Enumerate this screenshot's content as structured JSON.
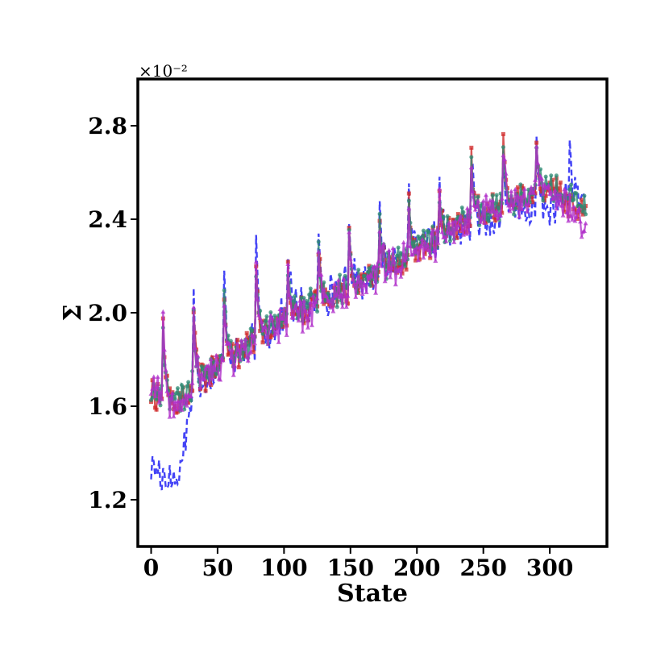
{
  "chart_data": {
    "type": "line",
    "xlabel": "State",
    "ylabel": "Σ",
    "y_offset_label": "×10⁻²",
    "xlim": [
      -10,
      343
    ],
    "ylim": [
      1.0,
      3.0
    ],
    "xticks": [
      0,
      50,
      100,
      150,
      200,
      250,
      300
    ],
    "xtick_labels": [
      "0",
      "50",
      "100",
      "150",
      "200",
      "250",
      "300"
    ],
    "yticks": [
      1.2,
      1.6,
      2.0,
      2.4,
      2.8
    ],
    "ytick_labels": [
      "1.2",
      "1.6",
      "2.0",
      "2.4",
      "2.8"
    ],
    "grid": false,
    "legend": "none",
    "x_count": 328,
    "series": [
      {
        "style": "dashed",
        "color": "#2f2ff5",
        "marker": "none",
        "trend": [
          [
            0,
            1.35
          ],
          [
            10,
            1.3
          ],
          [
            20,
            1.28
          ],
          [
            30,
            1.62
          ],
          [
            40,
            1.72
          ],
          [
            100,
            1.98
          ],
          [
            150,
            2.12
          ],
          [
            200,
            2.27
          ],
          [
            250,
            2.4
          ],
          [
            300,
            2.45
          ],
          [
            327,
            2.5
          ]
        ],
        "peaks": [
          [
            32,
            2.05
          ],
          [
            55,
            2.18
          ],
          [
            79,
            2.25
          ],
          [
            103,
            2.3
          ],
          [
            126,
            2.33
          ],
          [
            149,
            2.35
          ],
          [
            172,
            2.38
          ],
          [
            194,
            2.46
          ],
          [
            217,
            2.51
          ],
          [
            241,
            2.66
          ],
          [
            265,
            2.72
          ],
          [
            290,
            2.72
          ],
          [
            315,
            2.74
          ]
        ],
        "noise": 0.07
      },
      {
        "style": "solid",
        "color": "#d02b2b",
        "marker": "square",
        "trend": [
          [
            0,
            1.66
          ],
          [
            20,
            1.6
          ],
          [
            40,
            1.72
          ],
          [
            100,
            1.97
          ],
          [
            150,
            2.11
          ],
          [
            200,
            2.26
          ],
          [
            250,
            2.43
          ],
          [
            300,
            2.53
          ],
          [
            327,
            2.42
          ]
        ],
        "peaks": [
          [
            9,
            1.97
          ],
          [
            32,
            2.04
          ],
          [
            55,
            2.11
          ],
          [
            79,
            2.17
          ],
          [
            103,
            2.22
          ],
          [
            126,
            2.28
          ],
          [
            149,
            2.34
          ],
          [
            172,
            2.38
          ],
          [
            194,
            2.46
          ],
          [
            217,
            2.51
          ],
          [
            241,
            2.66
          ],
          [
            265,
            2.73
          ],
          [
            290,
            2.71
          ]
        ],
        "noise": 0.05
      },
      {
        "style": "solid",
        "color": "#2e8a73",
        "marker": "circle",
        "trend": [
          [
            0,
            1.66
          ],
          [
            20,
            1.62
          ],
          [
            40,
            1.73
          ],
          [
            100,
            1.98
          ],
          [
            150,
            2.12
          ],
          [
            200,
            2.27
          ],
          [
            250,
            2.44
          ],
          [
            300,
            2.54
          ],
          [
            327,
            2.45
          ]
        ],
        "peaks": [
          [
            9,
            1.95
          ],
          [
            32,
            2.03
          ],
          [
            55,
            2.1
          ],
          [
            79,
            2.16
          ],
          [
            103,
            2.21
          ],
          [
            126,
            2.27
          ],
          [
            149,
            2.33
          ],
          [
            172,
            2.37
          ],
          [
            194,
            2.45
          ],
          [
            217,
            2.5
          ],
          [
            241,
            2.65
          ],
          [
            265,
            2.72
          ],
          [
            290,
            2.7
          ]
        ],
        "noise": 0.05
      },
      {
        "style": "solid",
        "color": "#b02fc9",
        "marker": "triangle",
        "trend": [
          [
            0,
            1.68
          ],
          [
            20,
            1.58
          ],
          [
            40,
            1.72
          ],
          [
            100,
            1.96
          ],
          [
            150,
            2.1
          ],
          [
            200,
            2.25
          ],
          [
            250,
            2.43
          ],
          [
            300,
            2.52
          ],
          [
            327,
            2.38
          ]
        ],
        "peaks": [
          [
            9,
            1.93
          ],
          [
            32,
            2.02
          ],
          [
            55,
            2.09
          ],
          [
            79,
            2.15
          ],
          [
            103,
            2.2
          ],
          [
            126,
            2.26
          ],
          [
            149,
            2.32
          ],
          [
            172,
            2.36
          ],
          [
            194,
            2.44
          ],
          [
            217,
            2.49
          ],
          [
            241,
            2.64
          ],
          [
            265,
            2.74
          ],
          [
            290,
            2.72
          ]
        ],
        "noise": 0.06
      }
    ]
  }
}
